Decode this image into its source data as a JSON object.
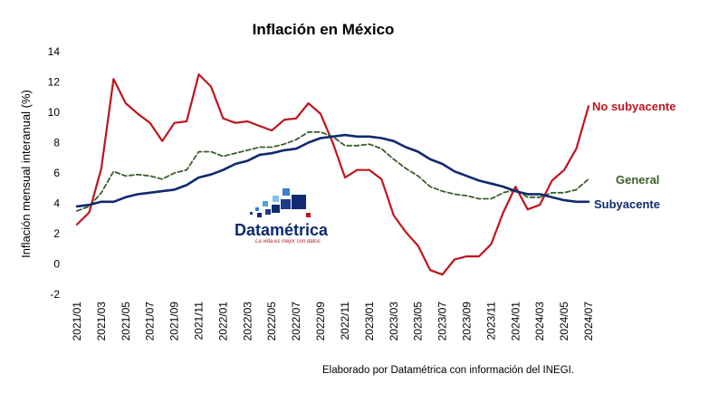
{
  "chart_data": {
    "type": "line",
    "title": "Inflación en México",
    "ylabel": "Inflación mensual interanual (%)",
    "xlabel": "",
    "ylim": [
      -2,
      14
    ],
    "yticks": [
      -2,
      0,
      2,
      4,
      6,
      8,
      10,
      12,
      14
    ],
    "x": [
      "2021/01",
      "2021/02",
      "2021/03",
      "2021/04",
      "2021/05",
      "2021/06",
      "2021/07",
      "2021/08",
      "2021/09",
      "2021/10",
      "2021/11",
      "2021/12",
      "2022/01",
      "2022/02",
      "2022/03",
      "2022/04",
      "2022/05",
      "2022/06",
      "2022/07",
      "2022/08",
      "2022/09",
      "2022/10",
      "2022/11",
      "2022/12",
      "2023/01",
      "2023/02",
      "2023/03",
      "2023/04",
      "2023/05",
      "2023/06",
      "2023/07",
      "2023/08",
      "2023/09",
      "2023/10",
      "2023/11",
      "2023/12",
      "2024/01",
      "2024/02",
      "2024/03",
      "2024/04",
      "2024/05",
      "2024/06",
      "2024/07"
    ],
    "xticks": [
      "2021/01",
      "2021/03",
      "2021/05",
      "2021/07",
      "2021/09",
      "2021/11",
      "2022/01",
      "2022/03",
      "2022/05",
      "2022/07",
      "2022/09",
      "2022/11",
      "2023/01",
      "2023/03",
      "2023/05",
      "2023/07",
      "2023/09",
      "2023/11",
      "2024/01",
      "2024/03",
      "2024/05",
      "2024/07"
    ],
    "series": [
      {
        "name": "No subyacente",
        "color": "#c0141c",
        "dash": "solid",
        "width": 2.2,
        "values": [
          2.6,
          3.4,
          6.3,
          12.2,
          10.6,
          9.9,
          9.3,
          8.1,
          9.3,
          9.4,
          12.5,
          11.7,
          9.6,
          9.3,
          9.4,
          9.1,
          8.8,
          9.5,
          9.6,
          10.6,
          9.9,
          8.0,
          5.7,
          6.2,
          6.2,
          5.6,
          3.2,
          2.1,
          1.2,
          -0.4,
          -0.7,
          0.3,
          0.5,
          0.5,
          1.3,
          3.4,
          5.1,
          3.6,
          3.9,
          5.5,
          6.2,
          7.6,
          10.4
        ]
      },
      {
        "name": "General",
        "color": "#3b5e2b",
        "dash": "dashed",
        "width": 1.8,
        "values": [
          3.5,
          3.8,
          4.7,
          6.1,
          5.8,
          5.9,
          5.8,
          5.6,
          6.0,
          6.2,
          7.4,
          7.4,
          7.1,
          7.3,
          7.5,
          7.7,
          7.7,
          7.9,
          8.2,
          8.7,
          8.7,
          8.4,
          7.8,
          7.8,
          7.9,
          7.6,
          6.9,
          6.3,
          5.8,
          5.1,
          4.8,
          4.6,
          4.5,
          4.3,
          4.3,
          4.7,
          4.9,
          4.4,
          4.4,
          4.7,
          4.7,
          4.9,
          5.6
        ]
      },
      {
        "name": "Subyacente",
        "color": "#0f2a6e",
        "dash": "solid",
        "width": 2.6,
        "values": [
          3.8,
          3.9,
          4.1,
          4.1,
          4.4,
          4.6,
          4.7,
          4.8,
          4.9,
          5.2,
          5.7,
          5.9,
          6.2,
          6.6,
          6.8,
          7.2,
          7.3,
          7.5,
          7.6,
          8.0,
          8.3,
          8.4,
          8.5,
          8.4,
          8.4,
          8.3,
          8.1,
          7.7,
          7.4,
          6.9,
          6.6,
          6.1,
          5.8,
          5.5,
          5.3,
          5.1,
          4.8,
          4.6,
          4.6,
          4.4,
          4.2,
          4.1,
          4.1
        ]
      }
    ],
    "grid": false,
    "legend": "inline labels at line ends"
  },
  "footer": {
    "credit": "Elaborado por Datamétrica con información del INEGI."
  },
  "watermark": {
    "name": "Datamétrica",
    "tagline": "La vida es mejor con datos"
  }
}
